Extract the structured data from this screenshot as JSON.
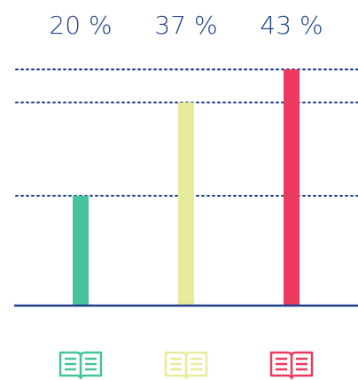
{
  "chart_data": {
    "type": "bar",
    "categories": [
      null,
      null,
      null
    ],
    "values": [
      20,
      37,
      43
    ],
    "value_labels": [
      "20 %",
      "37 %",
      "43 %"
    ],
    "colors": [
      "#45c39a",
      "#e8eb9b",
      "#ec3a5e"
    ],
    "ylim": [
      0,
      55
    ],
    "reference_lines": true
  }
}
